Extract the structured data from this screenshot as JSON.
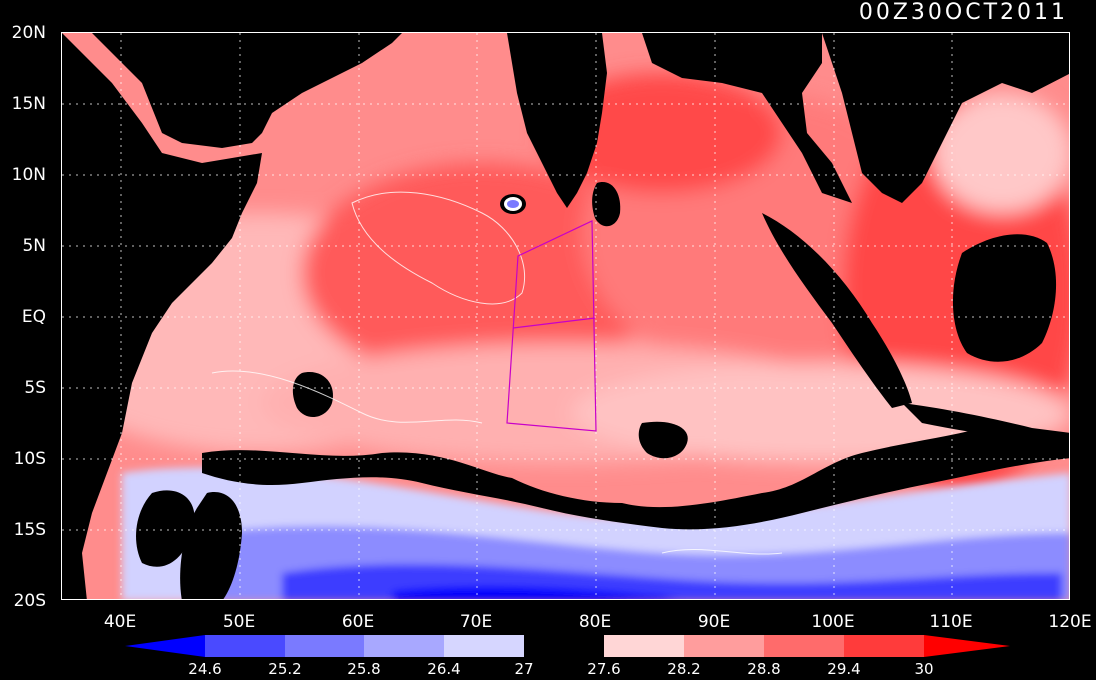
{
  "title": "00Z30OCT2011",
  "map": {
    "land_color": "#000000",
    "lat_labels": [
      "20N",
      "15N",
      "10N",
      "5N",
      "EQ",
      "5S",
      "10S",
      "15S",
      "20S"
    ],
    "lon_labels": [
      "40E",
      "50E",
      "60E",
      "70E",
      "80E",
      "90E",
      "100E",
      "110E",
      "120E"
    ],
    "extent": {
      "lon_min": 35,
      "lon_max": 120,
      "lat_min": -20,
      "lat_max": 20
    },
    "box_color": "#c800c8"
  },
  "colorbar": {
    "labels": [
      "24.6",
      "25.2",
      "25.8",
      "26.4",
      "27",
      "27.6",
      "28.2",
      "28.8",
      "29.4",
      "30"
    ],
    "colors": [
      "#0000ff",
      "#4a4aff",
      "#7a7aff",
      "#a8a8ff",
      "#d6d6ff",
      "#000000",
      "#ffd6d6",
      "#ff9d9d",
      "#ff6b6b",
      "#ff3b3b",
      "#ff0000"
    ]
  }
}
